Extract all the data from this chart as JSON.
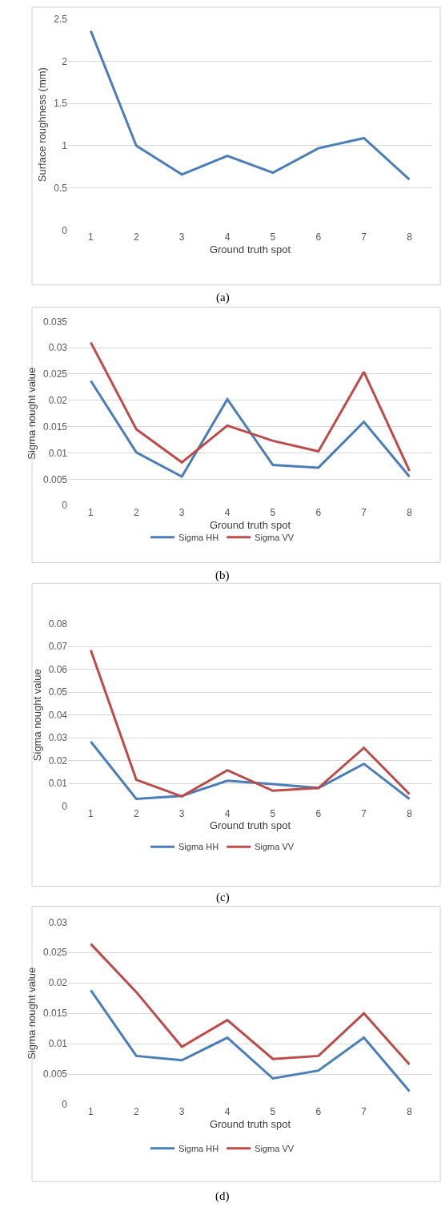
{
  "chart_data": [
    {
      "type": "line",
      "xlabel": "Ground truth spot",
      "ylabel": "Surface roughness (mm)",
      "annotations": [
        "(a)"
      ],
      "categories": [
        "1",
        "2",
        "3",
        "4",
        "5",
        "6",
        "7",
        "8"
      ],
      "series": [
        {
          "color": "#4a7ebb",
          "values": [
            2.36,
            1.0,
            0.66,
            0.88,
            0.68,
            0.97,
            1.09,
            0.6
          ]
        }
      ],
      "ylim": [
        0,
        2.5
      ],
      "yticks": [
        0,
        0.5,
        1,
        1.5,
        2,
        2.5
      ],
      "grid": "y",
      "marker": "none",
      "line_style": "solid"
    },
    {
      "type": "line",
      "xlabel": "Ground truth spot",
      "ylabel": "Sigma nought value",
      "annotations": [
        "(b)"
      ],
      "categories": [
        "1",
        "2",
        "3",
        "4",
        "5",
        "6",
        "7",
        "8"
      ],
      "series": [
        {
          "name": "Sigma HH",
          "color": "#4a7ebb",
          "values": [
            0.0237,
            0.0101,
            0.0055,
            0.0202,
            0.0077,
            0.0072,
            0.0159,
            0.0055
          ]
        },
        {
          "name": "Sigma VV",
          "color": "#be4b48",
          "values": [
            0.031,
            0.0145,
            0.0082,
            0.0152,
            0.0123,
            0.0103,
            0.0254,
            0.0066
          ]
        }
      ],
      "ylim": [
        0,
        0.035
      ],
      "yticks": [
        0,
        0.005,
        0.01,
        0.015,
        0.02,
        0.025,
        0.03,
        0.035
      ],
      "grid": "y",
      "legend": "bottom",
      "marker": "none",
      "line_style": "solid"
    },
    {
      "type": "line",
      "xlabel": "Ground truth spot",
      "ylabel": "Sigma nought value",
      "annotations": [
        "(c)"
      ],
      "categories": [
        "1",
        "2",
        "3",
        "4",
        "5",
        "6",
        "7",
        "8"
      ],
      "series": [
        {
          "name": "Sigma HH",
          "color": "#4a7ebb",
          "values": [
            0.0283,
            0.0032,
            0.0045,
            0.0112,
            0.0097,
            0.008,
            0.0186,
            0.0032
          ]
        },
        {
          "name": "Sigma VV",
          "color": "#be4b48",
          "values": [
            0.0684,
            0.0116,
            0.0043,
            0.0158,
            0.0068,
            0.008,
            0.0256,
            0.0053
          ]
        }
      ],
      "ylim": [
        0,
        0.08
      ],
      "yticks": [
        0,
        0.01,
        0.02,
        0.03,
        0.04,
        0.05,
        0.06,
        0.07,
        0.08
      ],
      "grid": "y",
      "legend": "bottom",
      "marker": "none",
      "line_style": "solid"
    },
    {
      "type": "line",
      "xlabel": "Ground truth spot",
      "ylabel": "Sigma nought value",
      "annotations": [
        "(d)"
      ],
      "categories": [
        "1",
        "2",
        "3",
        "4",
        "5",
        "6",
        "7",
        "8"
      ],
      "series": [
        {
          "name": "Sigma HH",
          "color": "#4a7ebb",
          "values": [
            0.0188,
            0.008,
            0.0073,
            0.011,
            0.0043,
            0.0056,
            0.011,
            0.0022
          ]
        },
        {
          "name": "Sigma VV",
          "color": "#be4b48",
          "values": [
            0.0264,
            0.0185,
            0.0095,
            0.0139,
            0.0075,
            0.008,
            0.015,
            0.0066
          ]
        }
      ],
      "ylim": [
        0,
        0.03
      ],
      "yticks": [
        0,
        0.005,
        0.01,
        0.015,
        0.02,
        0.025,
        0.03
      ],
      "grid": "y",
      "legend": "bottom",
      "marker": "none",
      "line_style": "solid"
    }
  ]
}
